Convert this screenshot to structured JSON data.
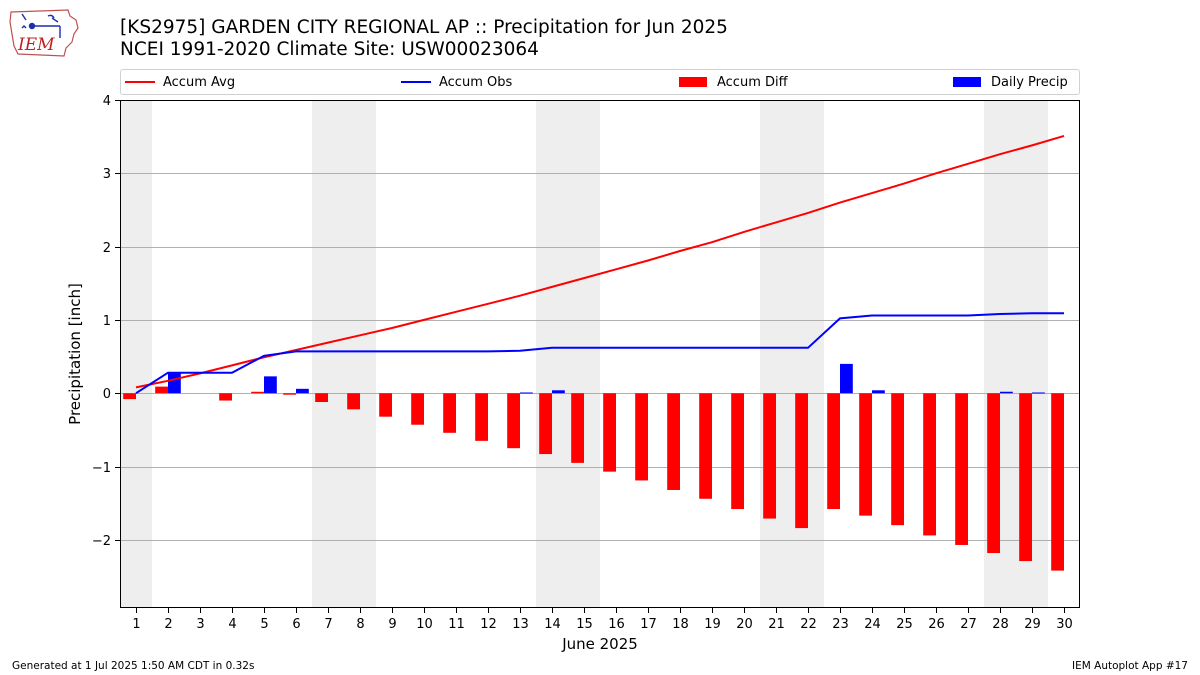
{
  "title_line1": "[KS2975] GARDEN CITY REGIONAL AP :: Precipitation for Jun 2025",
  "title_line2": "NCEI 1991-2020 Climate Site: USW00023064",
  "logo_text": "IEM",
  "footer_left": "Generated at 1 Jul 2025 1:50 AM CDT in 0.32s",
  "footer_right": "IEM Autoplot App #17",
  "colors": {
    "accum_avg": "#ff0000",
    "accum_obs": "#0000ff",
    "accum_diff": "#ff0000",
    "daily_precip": "#0000ff",
    "weekend_shade": "#eeeeee",
    "grid": "#b0b0b0"
  },
  "legend": [
    {
      "label": "Accum Avg",
      "kind": "line",
      "color": "#ff0000"
    },
    {
      "label": "Accum Obs",
      "kind": "line",
      "color": "#0000ff"
    },
    {
      "label": "Accum Diff",
      "kind": "box",
      "color": "#ff0000"
    },
    {
      "label": "Daily Precip",
      "kind": "box",
      "color": "#0000ff"
    }
  ],
  "chart_data": {
    "type": "bar",
    "xlabel": "June 2025",
    "ylabel": "Precipitation [inch]",
    "x": [
      1,
      2,
      3,
      4,
      5,
      6,
      7,
      8,
      9,
      10,
      11,
      12,
      13,
      14,
      15,
      16,
      17,
      18,
      19,
      20,
      21,
      22,
      23,
      24,
      25,
      26,
      27,
      28,
      29,
      30
    ],
    "xlim": [
      0.5,
      30.5
    ],
    "ylim": [
      -2.93,
      4.0
    ],
    "yticks": [
      -2,
      -1,
      0,
      1,
      2,
      3,
      4
    ],
    "ytick_labels": [
      "−2",
      "−1",
      "0",
      "1",
      "2",
      "3",
      "4"
    ],
    "grid": "y",
    "legend_position": "top",
    "weekend_shading": [
      [
        0.5,
        1.5
      ],
      [
        6.5,
        8.5
      ],
      [
        13.5,
        15.5
      ],
      [
        20.5,
        22.5
      ],
      [
        27.5,
        29.5
      ]
    ],
    "series": [
      {
        "name": "Accum Avg",
        "type": "line",
        "values": [
          0.08,
          0.17,
          0.27,
          0.38,
          0.49,
          0.59,
          0.69,
          0.79,
          0.89,
          1.0,
          1.11,
          1.22,
          1.33,
          1.45,
          1.57,
          1.69,
          1.81,
          1.94,
          2.06,
          2.2,
          2.33,
          2.46,
          2.6,
          2.73,
          2.86,
          3.0,
          3.13,
          3.26,
          3.38,
          3.51
        ]
      },
      {
        "name": "Accum Obs",
        "type": "line",
        "values": [
          0.0,
          0.28,
          0.28,
          0.28,
          0.51,
          0.57,
          0.57,
          0.57,
          0.57,
          0.57,
          0.57,
          0.57,
          0.58,
          0.62,
          0.62,
          0.62,
          0.62,
          0.62,
          0.62,
          0.62,
          0.62,
          0.62,
          1.02,
          1.06,
          1.06,
          1.06,
          1.06,
          1.08,
          1.09,
          1.09
        ]
      },
      {
        "name": "Accum Diff",
        "type": "bar",
        "values": [
          -0.08,
          0.09,
          0.0,
          -0.1,
          0.02,
          -0.02,
          -0.12,
          -0.22,
          -0.32,
          -0.43,
          -0.54,
          -0.65,
          -0.75,
          -0.83,
          -0.95,
          -1.07,
          -1.19,
          -1.32,
          -1.44,
          -1.58,
          -1.71,
          -1.84,
          -1.58,
          -1.67,
          -1.8,
          -1.94,
          -2.07,
          -2.18,
          -2.29,
          -2.42
        ]
      },
      {
        "name": "Daily Precip",
        "type": "bar",
        "values": [
          0.0,
          0.28,
          0.0,
          0.0,
          0.23,
          0.06,
          0.0,
          0.0,
          0.0,
          0.0,
          0.0,
          0.0,
          0.01,
          0.04,
          0.0,
          0.0,
          0.0,
          0.0,
          0.0,
          0.0,
          0.0,
          0.0,
          0.4,
          0.04,
          0.0,
          0.0,
          0.0,
          0.02,
          0.01,
          0.0
        ]
      }
    ]
  }
}
